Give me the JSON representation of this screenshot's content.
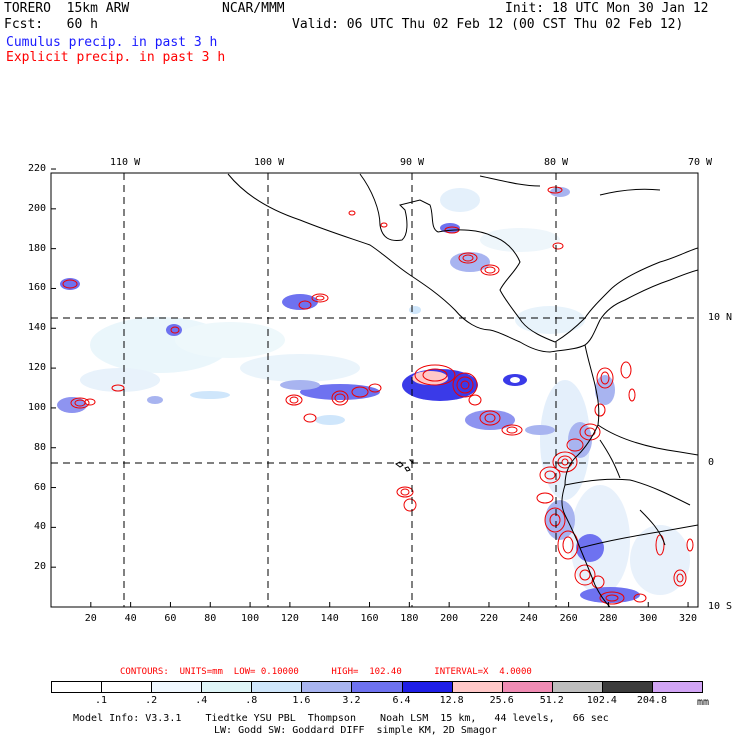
{
  "header": {
    "domain_name": "TORERO  15km ARW",
    "center": "NCAR/MMM",
    "init": "Init: 18 UTC Mon 30 Jan 12",
    "forecast": "Fcst:   60 h",
    "valid": "Valid: 06 UTC Thu 02 Feb 12 (00 CST Thu 02 Feb 12)",
    "field1": "Cumulus precip. in past 3 h",
    "field2": "Explicit precip. in past 3 h"
  },
  "axes": {
    "top_lon_labels": [
      "110 W",
      "100 W",
      "90 W",
      "80 W",
      "70 W"
    ],
    "right_lat_labels": [
      "10 N",
      "0",
      "10 S"
    ],
    "y_grid_ticks": [
      20,
      40,
      60,
      80,
      100,
      120,
      140,
      160,
      180,
      200,
      220
    ],
    "x_grid_ticks": [
      20,
      40,
      60,
      80,
      100,
      120,
      140,
      160,
      180,
      200,
      220,
      240,
      260,
      280,
      300,
      320
    ]
  },
  "contours": {
    "label": "CONTOURS:  UNITS=mm  LOW= 0.10000      HIGH=  102.40      INTERVAL=X  4.0000"
  },
  "colorbar": {
    "labels": [
      ".1",
      ".2",
      ".4",
      ".8",
      "1.6",
      "3.2",
      "6.4",
      "12.8",
      "25.6",
      "51.2",
      "102.4",
      "204.8"
    ],
    "units": "mm",
    "colors": [
      "#ffffff",
      "#ffffff",
      "#f0f8ff",
      "#dff5f7",
      "#cfe6fb",
      "#a8b4f0",
      "#6e72f0",
      "#1e1ee6",
      "#ffc8c8",
      "#f08cb4",
      "#bebebe",
      "#3c3c3c",
      "#d2a5f5"
    ]
  },
  "footer": {
    "line1": "Model Info: V3.3.1    Tiedtke YSU PBL  Thompson    Noah LSM  15 km,   44 levels,   66 sec",
    "line2": "LW: Godd SW: Goddard DIFF  simple KM, 2D Smagor"
  }
}
